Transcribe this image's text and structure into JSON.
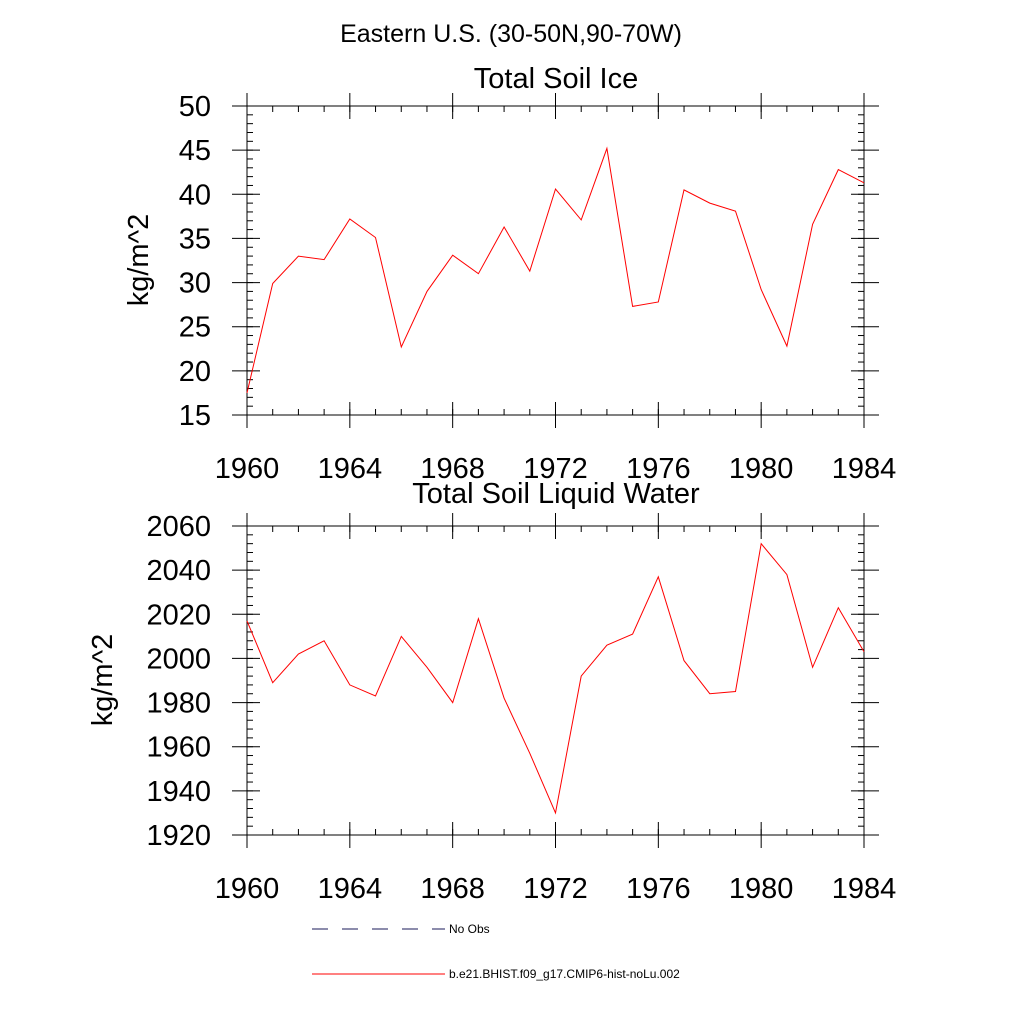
{
  "figure": {
    "main_title": "Eastern U.S. (30-50N,90-70W)"
  },
  "chart_data": [
    {
      "type": "line",
      "title": "Total Soil Ice",
      "xlabel": "",
      "ylabel": "kg/m^2",
      "xlim": [
        1960,
        1984
      ],
      "ylim": [
        15,
        50
      ],
      "xticks": [
        1960,
        1964,
        1968,
        1972,
        1976,
        1980,
        1984
      ],
      "yticks": [
        15,
        20,
        25,
        30,
        35,
        40,
        45,
        50
      ],
      "x": [
        1960,
        1961,
        1962,
        1963,
        1964,
        1965,
        1966,
        1967,
        1968,
        1969,
        1970,
        1971,
        1972,
        1973,
        1974,
        1975,
        1976,
        1977,
        1978,
        1979,
        1980,
        1981,
        1982,
        1983,
        1984
      ],
      "series": [
        {
          "name": "b.e21.BHIST.f09_g17.CMIP6-hist-noLu.002",
          "color": "#ff0000",
          "values": [
            17.5,
            29.9,
            33.0,
            32.6,
            37.2,
            35.1,
            22.7,
            29.0,
            33.1,
            31.0,
            36.3,
            31.3,
            40.6,
            37.1,
            45.2,
            27.3,
            27.8,
            40.5,
            39.0,
            38.1,
            29.2,
            22.8,
            36.6,
            42.8,
            41.3
          ]
        }
      ]
    },
    {
      "type": "line",
      "title": "Total Soil Liquid Water",
      "xlabel": "",
      "ylabel": "kg/m^2",
      "xlim": [
        1960,
        1984
      ],
      "ylim": [
        1920,
        2060
      ],
      "xticks": [
        1960,
        1964,
        1968,
        1972,
        1976,
        1980,
        1984
      ],
      "yticks": [
        1920,
        1940,
        1960,
        1980,
        2000,
        2020,
        2040,
        2060
      ],
      "x": [
        1960,
        1961,
        1962,
        1963,
        1964,
        1965,
        1966,
        1967,
        1968,
        1969,
        1970,
        1971,
        1972,
        1973,
        1974,
        1975,
        1976,
        1977,
        1978,
        1979,
        1980,
        1981,
        1982,
        1983,
        1984
      ],
      "series": [
        {
          "name": "b.e21.BHIST.f09_g17.CMIP6-hist-noLu.002",
          "color": "#ff0000",
          "values": [
            2017,
            1989,
            2002,
            2008,
            1988,
            1983,
            2010,
            1996,
            1980,
            2018,
            1982,
            1957,
            1930,
            1992,
            2006,
            2011,
            2037,
            1999,
            1984,
            1985,
            2052,
            2038,
            1996,
            2023,
            2003
          ]
        }
      ]
    }
  ],
  "legend": [
    {
      "label": "No Obs",
      "style": "dashed",
      "color": "#1a1a5a"
    },
    {
      "label": "b.e21.BHIST.f09_g17.CMIP6-hist-noLu.002",
      "style": "solid",
      "color": "#ff0000"
    }
  ]
}
